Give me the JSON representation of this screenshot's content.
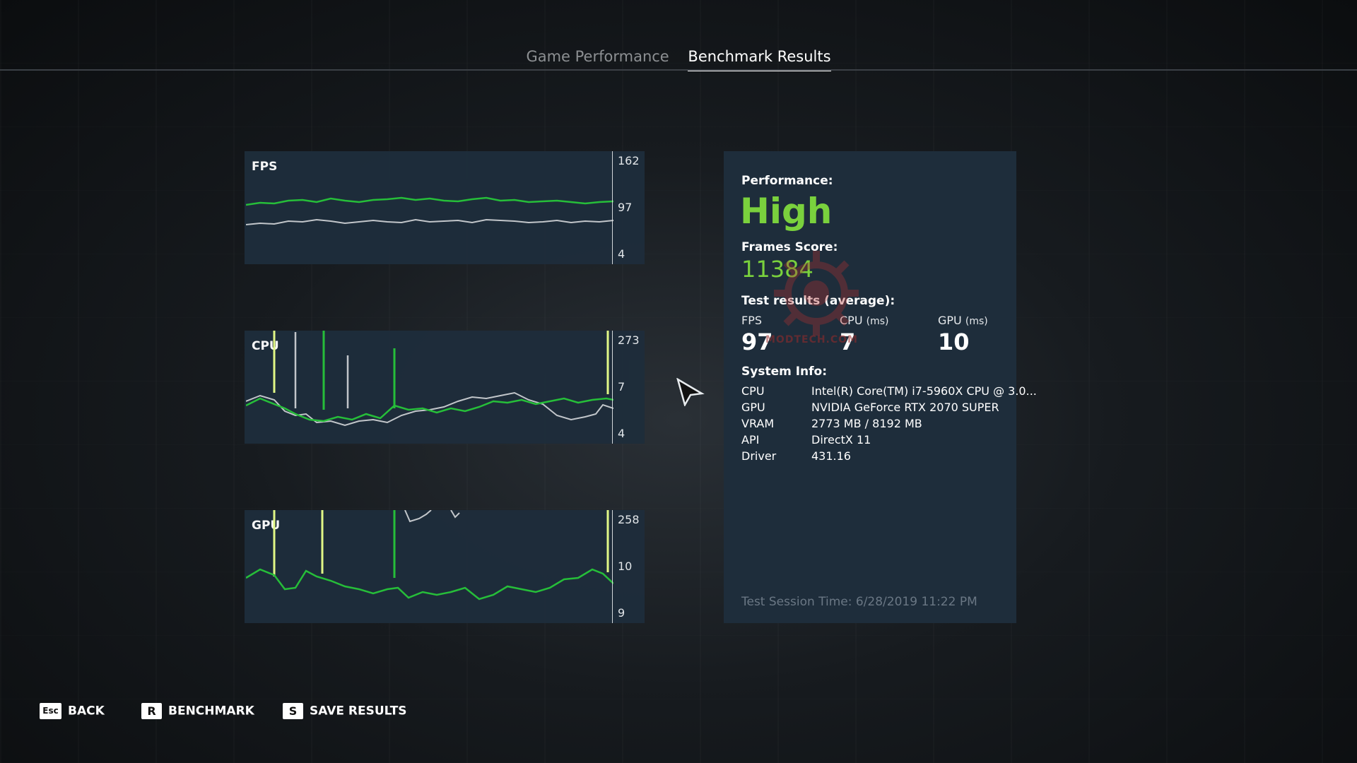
{
  "tabs": [
    {
      "label": "Game Performance",
      "active": false
    },
    {
      "label": "Benchmark Results",
      "active": true
    }
  ],
  "charts": {
    "fps": {
      "label": "FPS",
      "ticks": [
        "162",
        "97",
        "4"
      ]
    },
    "cpu": {
      "label": "CPU",
      "ticks": [
        "273",
        "7",
        "4"
      ]
    },
    "gpu": {
      "label": "GPU",
      "ticks": [
        "258",
        "10",
        "9"
      ]
    }
  },
  "results": {
    "performance_label": "Performance:",
    "performance_value": "High",
    "frames_score_label": "Frames Score:",
    "frames_score_value": "11384",
    "test_results_label": "Test results (average):",
    "fps_label": "FPS",
    "fps_value": "97",
    "cpu_label": "CPU",
    "cpu_unit": "(ms)",
    "cpu_value": "7",
    "gpu_label": "GPU",
    "gpu_unit": "(ms)",
    "gpu_value": "10"
  },
  "system": {
    "label": "System Info:",
    "rows": [
      {
        "key": "CPU",
        "value": "Intel(R) Core(TM) i7-5960X CPU @ 3.0..."
      },
      {
        "key": "GPU",
        "value": "NVIDIA GeForce RTX 2070 SUPER"
      },
      {
        "key": "VRAM",
        "value": "2773 MB / 8192 MB"
      },
      {
        "key": "API",
        "value": "DirectX 11"
      },
      {
        "key": "Driver",
        "value": "431.16"
      }
    ]
  },
  "session_time": "Test Session Time: 6/28/2019 11:22 PM",
  "watermark": "MODTECH.COM",
  "footer": [
    {
      "key": "Esc",
      "label": "BACK"
    },
    {
      "key": "R",
      "label": "BENCHMARK"
    },
    {
      "key": "S",
      "label": "SAVE RESULTS"
    }
  ],
  "colors": {
    "accent_green": "#7ad13d",
    "line_green": "#27c43a",
    "line_gray": "#c8ccd0",
    "panel": "#1e2d3b",
    "spike_yellow": "#e8ff8a"
  }
}
